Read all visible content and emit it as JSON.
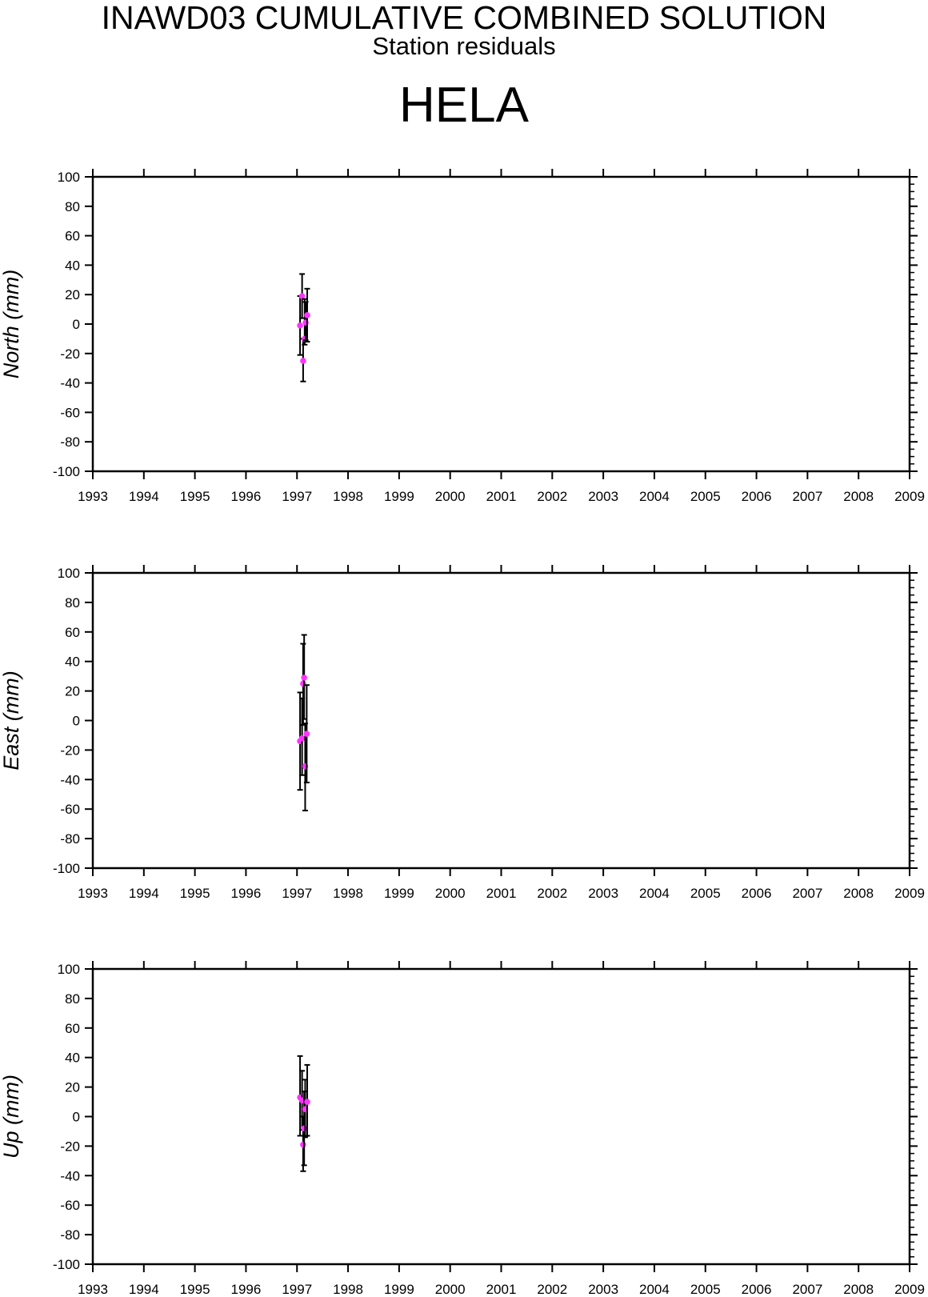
{
  "header": {
    "title": "INAWD03 CUMULATIVE COMBINED SOLUTION",
    "subtitle": "Station residuals",
    "station": "HELA"
  },
  "colors": {
    "point": "#ff33ff",
    "errorbar": "#000000",
    "axis": "#000000"
  },
  "chart_data": [
    {
      "type": "scatter",
      "ylabel": "North (mm)",
      "xlim": [
        1993,
        2009
      ],
      "ylim": [
        -100,
        100
      ],
      "xticks": [
        "1993",
        "1994",
        "1995",
        "1996",
        "1997",
        "1998",
        "1999",
        "2000",
        "2001",
        "2002",
        "2003",
        "2004",
        "2005",
        "2006",
        "2007",
        "2008",
        "2009"
      ],
      "yticks": [
        "100",
        "80",
        "60",
        "40",
        "20",
        "0",
        "-20",
        "-40",
        "-60",
        "-80",
        "-100"
      ],
      "points": [
        {
          "x": 1997.06,
          "y": -1,
          "lo": -21,
          "hi": 19
        },
        {
          "x": 1997.1,
          "y": 19,
          "lo": 4,
          "hi": 34
        },
        {
          "x": 1997.12,
          "y": -25,
          "lo": -39,
          "hi": -10
        },
        {
          "x": 1997.15,
          "y": -10,
          "lo": -14,
          "hi": 17
        },
        {
          "x": 1997.17,
          "y": 1,
          "lo": -11,
          "hi": 15
        },
        {
          "x": 1997.2,
          "y": 6,
          "lo": -12,
          "hi": 24
        }
      ]
    },
    {
      "type": "scatter",
      "ylabel": "East (mm)",
      "xlim": [
        1993,
        2009
      ],
      "ylim": [
        -100,
        100
      ],
      "xticks": [
        "1993",
        "1994",
        "1995",
        "1996",
        "1997",
        "1998",
        "1999",
        "2000",
        "2001",
        "2002",
        "2003",
        "2004",
        "2005",
        "2006",
        "2007",
        "2008",
        "2009"
      ],
      "yticks": [
        "100",
        "80",
        "60",
        "40",
        "20",
        "0",
        "-20",
        "-40",
        "-60",
        "-80",
        "-100"
      ],
      "points": [
        {
          "x": 1997.06,
          "y": -14,
          "lo": -47,
          "hi": 19
        },
        {
          "x": 1997.1,
          "y": -12,
          "lo": -37,
          "hi": 15
        },
        {
          "x": 1997.12,
          "y": 25,
          "lo": -3,
          "hi": 52
        },
        {
          "x": 1997.14,
          "y": 29,
          "lo": 1,
          "hi": 58
        },
        {
          "x": 1997.16,
          "y": -31,
          "lo": -61,
          "hi": -2
        },
        {
          "x": 1997.19,
          "y": -9,
          "lo": -42,
          "hi": 24
        }
      ]
    },
    {
      "type": "scatter",
      "ylabel": "Up (mm)",
      "xlim": [
        1993,
        2009
      ],
      "ylim": [
        -100,
        100
      ],
      "xticks": [
        "1993",
        "1994",
        "1995",
        "1996",
        "1997",
        "1998",
        "1999",
        "2000",
        "2001",
        "2002",
        "2003",
        "2004",
        "2005",
        "2006",
        "2007",
        "2008",
        "2009"
      ],
      "yticks": [
        "100",
        "80",
        "60",
        "40",
        "20",
        "0",
        "-20",
        "-40",
        "-60",
        "-80",
        "-100"
      ],
      "points": [
        {
          "x": 1997.06,
          "y": 13,
          "lo": -13,
          "hi": 41
        },
        {
          "x": 1997.1,
          "y": 11,
          "lo": -9,
          "hi": 31
        },
        {
          "x": 1997.12,
          "y": -19,
          "lo": -37,
          "hi": 0
        },
        {
          "x": 1997.14,
          "y": -8,
          "lo": -33,
          "hi": 17
        },
        {
          "x": 1997.16,
          "y": 5,
          "lo": -14,
          "hi": 25
        },
        {
          "x": 1997.2,
          "y": 10,
          "lo": -13,
          "hi": 35
        }
      ]
    }
  ]
}
